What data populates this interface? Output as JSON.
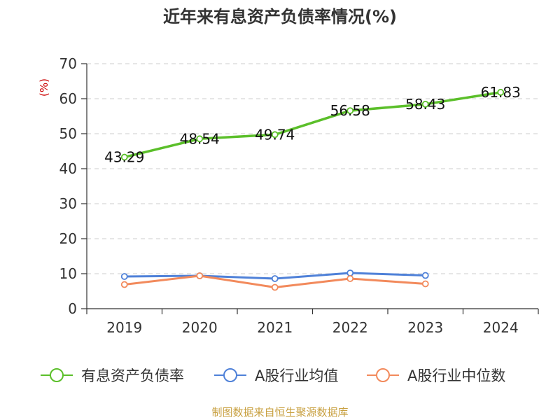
{
  "chart_data": {
    "type": "line",
    "title": "近年来有息资产负债率情况(%)",
    "unit_label": "(%)",
    "categories": [
      "2019",
      "2020",
      "2021",
      "2022",
      "2023",
      "2024"
    ],
    "ylim": [
      0,
      70
    ],
    "yticks": [
      0,
      10,
      20,
      30,
      40,
      50,
      60,
      70
    ],
    "grid": true,
    "legend_position": "bottom",
    "series": [
      {
        "name": "有息资产负债率",
        "color": "#5bbf2a",
        "values": [
          43.29,
          48.54,
          49.74,
          56.58,
          58.43,
          61.83
        ],
        "labels": [
          "43.29",
          "48.54",
          "49.74",
          "56.58",
          "58.43",
          "61.83"
        ]
      },
      {
        "name": "A股行业均值",
        "color": "#4f81d8",
        "values": [
          9.2,
          9.4,
          8.6,
          10.2,
          9.5,
          null
        ]
      },
      {
        "name": "A股行业中位数",
        "color": "#f28a5c",
        "values": [
          6.9,
          9.4,
          6.1,
          8.6,
          7.1,
          null
        ]
      }
    ],
    "source": "制图数据来自恒生聚源数据库",
    "colors": {
      "unit": "#cc0000",
      "source": "#c8a040",
      "axis": "#333333",
      "grid": "#cccccc"
    }
  }
}
